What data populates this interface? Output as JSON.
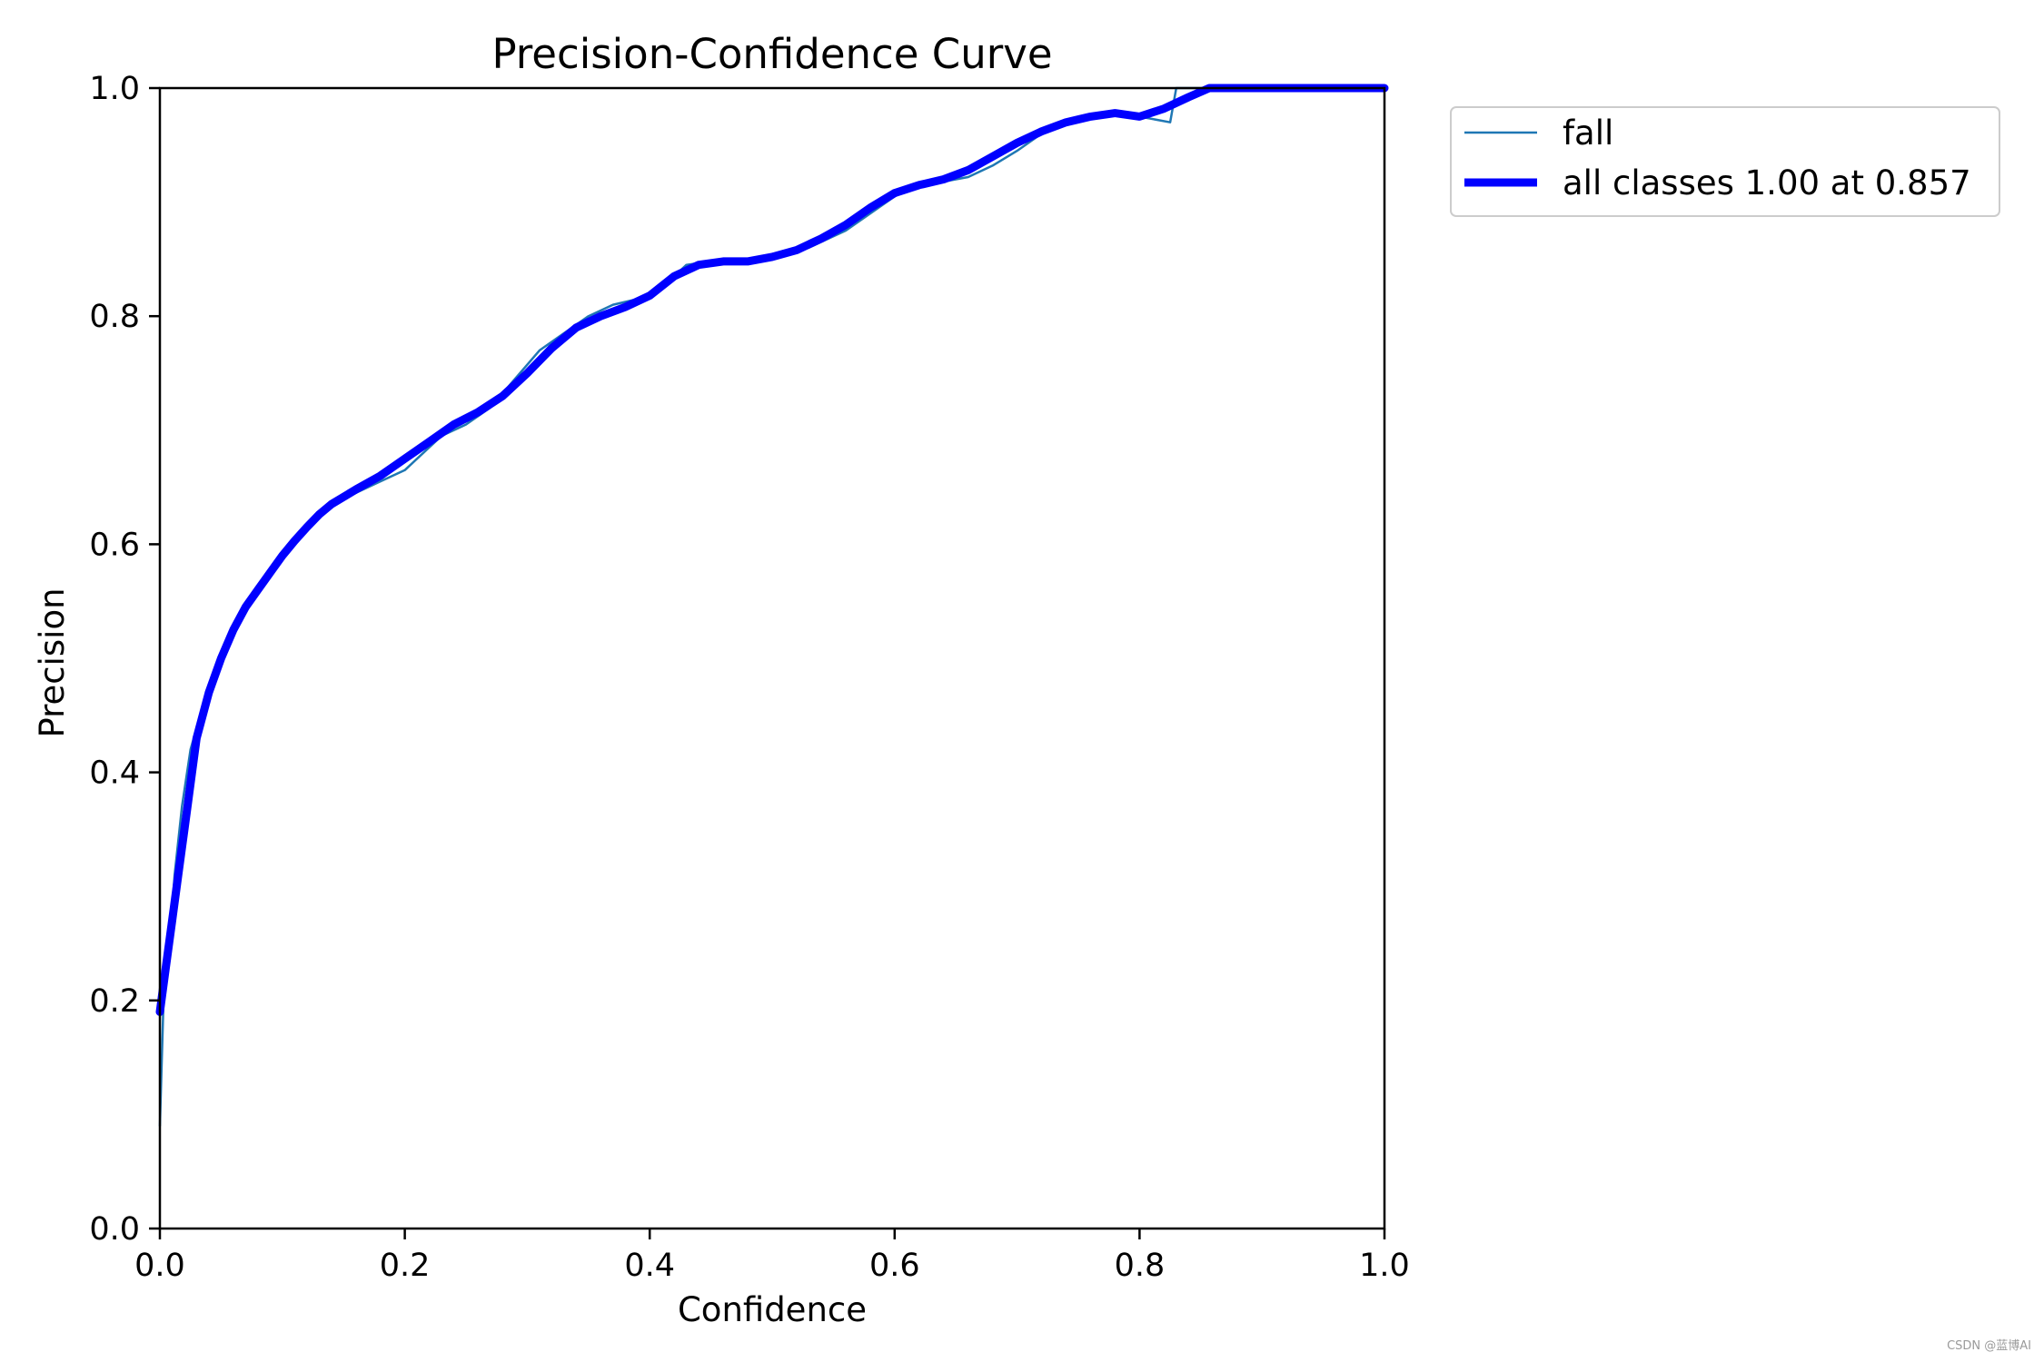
{
  "chart_data": {
    "type": "line",
    "title": "Precision-Confidence Curve",
    "xlabel": "Confidence",
    "ylabel": "Precision",
    "xlim": [
      0,
      1
    ],
    "ylim": [
      0,
      1
    ],
    "xticks": [
      "0.0",
      "0.2",
      "0.4",
      "0.6",
      "0.8",
      "1.0"
    ],
    "yticks": [
      "0.0",
      "0.2",
      "0.4",
      "0.6",
      "0.8",
      "1.0"
    ],
    "grid": false,
    "legend_position": "outside-top-right",
    "series": [
      {
        "name": "fall",
        "color": "#1f77b4",
        "style": "thin",
        "x": [
          0.0,
          0.003,
          0.008,
          0.012,
          0.018,
          0.025,
          0.033,
          0.042,
          0.052,
          0.06,
          0.07,
          0.08,
          0.095,
          0.11,
          0.125,
          0.14,
          0.16,
          0.18,
          0.2,
          0.215,
          0.23,
          0.25,
          0.27,
          0.29,
          0.31,
          0.33,
          0.35,
          0.37,
          0.39,
          0.41,
          0.43,
          0.45,
          0.47,
          0.5,
          0.53,
          0.56,
          0.58,
          0.6,
          0.62,
          0.64,
          0.66,
          0.68,
          0.7,
          0.72,
          0.74,
          0.76,
          0.78,
          0.8,
          0.825,
          0.83,
          0.845,
          0.86,
          0.9,
          0.95,
          1.0
        ],
        "y": [
          0.09,
          0.2,
          0.25,
          0.31,
          0.37,
          0.42,
          0.45,
          0.48,
          0.51,
          0.52,
          0.54,
          0.56,
          0.58,
          0.6,
          0.62,
          0.635,
          0.645,
          0.655,
          0.665,
          0.68,
          0.695,
          0.705,
          0.72,
          0.745,
          0.77,
          0.785,
          0.8,
          0.81,
          0.815,
          0.825,
          0.845,
          0.848,
          0.848,
          0.853,
          0.86,
          0.875,
          0.89,
          0.905,
          0.915,
          0.918,
          0.922,
          0.932,
          0.945,
          0.96,
          0.968,
          0.975,
          0.978,
          0.975,
          0.97,
          1.0,
          1.0,
          1.0,
          1.0,
          1.0,
          1.0
        ]
      },
      {
        "name": "all classes 1.00 at 0.857",
        "color": "#0000ff",
        "style": "thick",
        "x": [
          0.0,
          0.005,
          0.01,
          0.015,
          0.02,
          0.025,
          0.03,
          0.04,
          0.05,
          0.06,
          0.07,
          0.08,
          0.09,
          0.1,
          0.11,
          0.12,
          0.13,
          0.14,
          0.16,
          0.18,
          0.2,
          0.22,
          0.24,
          0.26,
          0.28,
          0.3,
          0.32,
          0.34,
          0.36,
          0.38,
          0.4,
          0.42,
          0.44,
          0.46,
          0.48,
          0.5,
          0.52,
          0.54,
          0.56,
          0.58,
          0.6,
          0.62,
          0.64,
          0.66,
          0.68,
          0.7,
          0.72,
          0.74,
          0.76,
          0.78,
          0.8,
          0.82,
          0.84,
          0.857,
          0.88,
          0.92,
          0.96,
          1.0
        ],
        "y": [
          0.19,
          0.23,
          0.27,
          0.31,
          0.35,
          0.39,
          0.43,
          0.47,
          0.5,
          0.525,
          0.545,
          0.56,
          0.575,
          0.59,
          0.603,
          0.615,
          0.626,
          0.635,
          0.648,
          0.66,
          0.675,
          0.69,
          0.705,
          0.716,
          0.73,
          0.75,
          0.772,
          0.79,
          0.8,
          0.808,
          0.818,
          0.835,
          0.845,
          0.848,
          0.848,
          0.852,
          0.858,
          0.868,
          0.88,
          0.895,
          0.908,
          0.915,
          0.92,
          0.928,
          0.94,
          0.952,
          0.962,
          0.97,
          0.975,
          0.978,
          0.975,
          0.982,
          0.992,
          1.0,
          1.0,
          1.0,
          1.0,
          1.0
        ]
      }
    ]
  },
  "watermark": "CSDN @蓝博AI"
}
